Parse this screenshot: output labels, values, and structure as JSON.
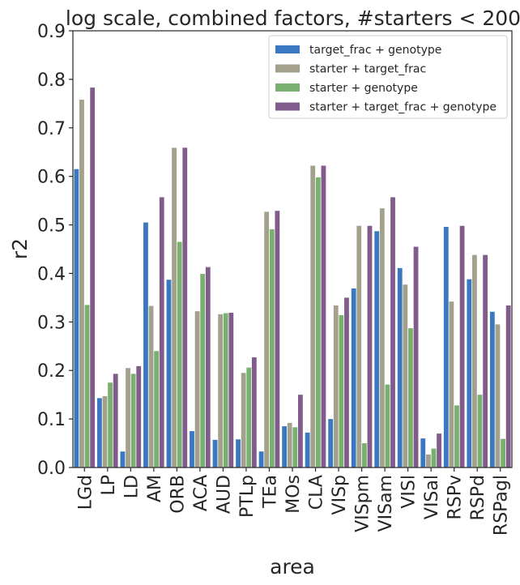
{
  "chart_data": {
    "type": "bar",
    "title": "log scale, combined factors, #starters < 200",
    "xlabel": "area",
    "ylabel": "r2",
    "ylim": [
      0,
      0.9
    ],
    "yticks": [
      "0.0",
      "0.1",
      "0.2",
      "0.3",
      "0.4",
      "0.5",
      "0.6",
      "0.7",
      "0.8",
      "0.9"
    ],
    "grid": false,
    "legend_position": "top-right",
    "categories": [
      "LGd",
      "LP",
      "LD",
      "AM",
      "ORB",
      "ACA",
      "AUD",
      "PTLp",
      "TEa",
      "MOs",
      "CLA",
      "VISp",
      "VISpm",
      "VISam",
      "VISl",
      "VISal",
      "RSPv",
      "RSPd",
      "RSPagl"
    ],
    "series": [
      {
        "name": "target_frac + genotype",
        "color": "#3a78c1",
        "values": [
          0.615,
          0.143,
          0.033,
          0.505,
          0.387,
          0.075,
          0.057,
          0.058,
          0.033,
          0.085,
          0.072,
          0.1,
          0.369,
          0.487,
          0.411,
          0.06,
          0.496,
          0.388,
          0.321
        ]
      },
      {
        "name": "starter + target_frac",
        "color": "#a3a08c",
        "values": [
          0.758,
          0.147,
          0.205,
          0.333,
          0.659,
          0.322,
          0.316,
          0.195,
          0.527,
          0.092,
          0.622,
          0.334,
          0.498,
          0.534,
          0.377,
          0.027,
          0.342,
          0.438,
          0.295
        ]
      },
      {
        "name": "starter + genotype",
        "color": "#78b06f",
        "values": [
          0.335,
          0.175,
          0.193,
          0.24,
          0.465,
          0.399,
          0.318,
          0.206,
          0.491,
          0.083,
          0.598,
          0.314,
          0.05,
          0.171,
          0.287,
          0.039,
          0.128,
          0.15,
          0.059
        ]
      },
      {
        "name": "starter + target_frac + genotype",
        "color": "#815b8c",
        "values": [
          0.783,
          0.193,
          0.209,
          0.557,
          0.659,
          0.413,
          0.319,
          0.227,
          0.529,
          0.15,
          0.622,
          0.35,
          0.498,
          0.557,
          0.455,
          0.07,
          0.498,
          0.438,
          0.334
        ]
      }
    ]
  }
}
